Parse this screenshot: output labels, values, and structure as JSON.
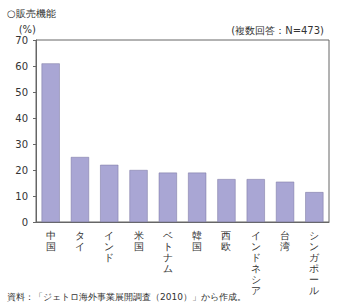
{
  "chart_data": {
    "type": "bar",
    "title": "○販売機能",
    "subtitle": "(複数回答：N=473)",
    "ylabel": "(%)",
    "source": "資料：「ジェトロ海外事業展開調査（2010）」から作成。",
    "categories": [
      "中国",
      "タイ",
      "インド",
      "米国",
      "ベトナム",
      "韓国",
      "西欧",
      "インドネシア",
      "台湾",
      "シンガポール"
    ],
    "values": [
      61,
      25,
      22,
      20,
      19,
      19,
      16.5,
      16.5,
      15.5,
      11.5
    ],
    "color": "#a9a6d4",
    "ylim": [
      0,
      70
    ],
    "yticks": [
      0,
      10,
      20,
      30,
      40,
      50,
      60,
      70
    ],
    "grid": false
  }
}
